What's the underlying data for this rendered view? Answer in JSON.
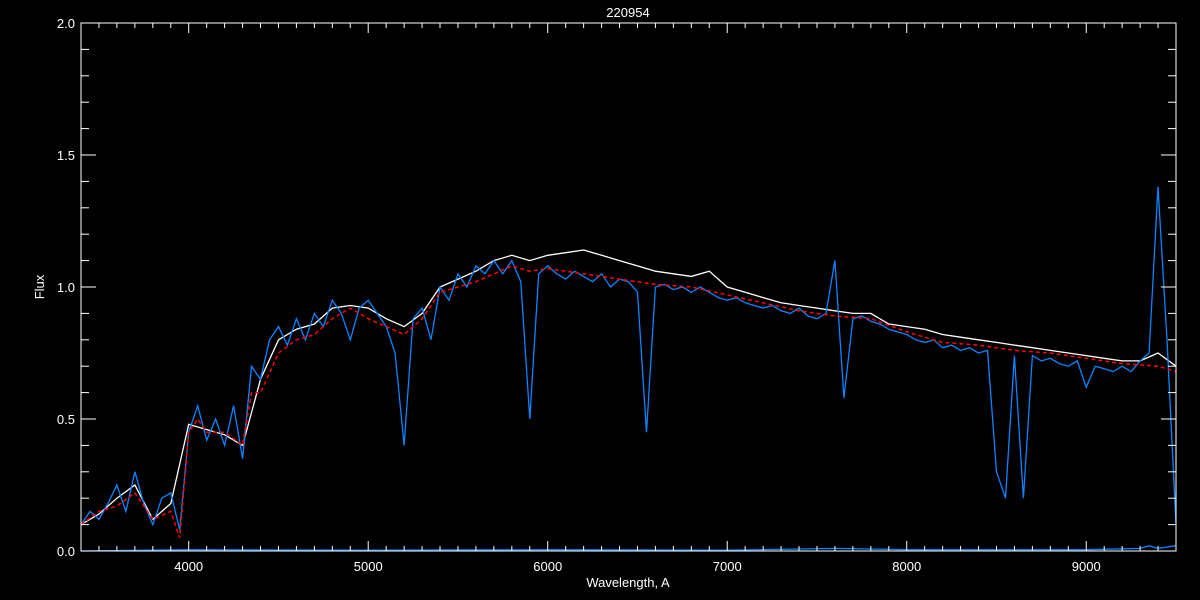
{
  "chart_data": {
    "type": "line",
    "title": "220954",
    "xlabel": "Wavelength, A",
    "ylabel": "Flux",
    "xlim": [
      3400,
      9500
    ],
    "ylim": [
      0.0,
      2.0
    ],
    "xticks": [
      4000,
      5000,
      6000,
      7000,
      8000,
      9000
    ],
    "xtick_labels": [
      "4000",
      "5000",
      "6000",
      "7000",
      "8000",
      "9000"
    ],
    "yticks": [
      0.0,
      0.5,
      1.0,
      1.5,
      2.0
    ],
    "ytick_labels": [
      "0.0",
      "0.5",
      "1.0",
      "1.5",
      "2.0"
    ],
    "grid": false,
    "background": "#000000",
    "series": [
      {
        "color": "#ffffff",
        "style": "solid",
        "points": [
          [
            3400,
            0.1
          ],
          [
            3500,
            0.14
          ],
          [
            3600,
            0.2
          ],
          [
            3700,
            0.25
          ],
          [
            3800,
            0.12
          ],
          [
            3900,
            0.18
          ],
          [
            4000,
            0.48
          ],
          [
            4100,
            0.46
          ],
          [
            4200,
            0.44
          ],
          [
            4300,
            0.4
          ],
          [
            4400,
            0.65
          ],
          [
            4500,
            0.8
          ],
          [
            4600,
            0.84
          ],
          [
            4700,
            0.86
          ],
          [
            4800,
            0.92
          ],
          [
            4900,
            0.93
          ],
          [
            5000,
            0.92
          ],
          [
            5100,
            0.88
          ],
          [
            5200,
            0.85
          ],
          [
            5300,
            0.9
          ],
          [
            5400,
            1.0
          ],
          [
            5500,
            1.03
          ],
          [
            5600,
            1.06
          ],
          [
            5700,
            1.1
          ],
          [
            5800,
            1.12
          ],
          [
            5900,
            1.1
          ],
          [
            6000,
            1.12
          ],
          [
            6100,
            1.13
          ],
          [
            6200,
            1.14
          ],
          [
            6300,
            1.12
          ],
          [
            6400,
            1.1
          ],
          [
            6500,
            1.08
          ],
          [
            6600,
            1.06
          ],
          [
            6700,
            1.05
          ],
          [
            6800,
            1.04
          ],
          [
            6900,
            1.06
          ],
          [
            7000,
            1.0
          ],
          [
            7100,
            0.98
          ],
          [
            7200,
            0.96
          ],
          [
            7300,
            0.94
          ],
          [
            7400,
            0.93
          ],
          [
            7500,
            0.92
          ],
          [
            7600,
            0.91
          ],
          [
            7700,
            0.9
          ],
          [
            7800,
            0.9
          ],
          [
            7900,
            0.86
          ],
          [
            8000,
            0.85
          ],
          [
            8100,
            0.84
          ],
          [
            8200,
            0.82
          ],
          [
            8300,
            0.81
          ],
          [
            8400,
            0.8
          ],
          [
            8500,
            0.79
          ],
          [
            8600,
            0.78
          ],
          [
            8700,
            0.77
          ],
          [
            8800,
            0.76
          ],
          [
            8900,
            0.75
          ],
          [
            9000,
            0.74
          ],
          [
            9100,
            0.73
          ],
          [
            9200,
            0.72
          ],
          [
            9300,
            0.72
          ],
          [
            9400,
            0.75
          ],
          [
            9500,
            0.7
          ]
        ]
      },
      {
        "color": "#0a84ff",
        "style": "solid",
        "points": [
          [
            3400,
            0.1
          ],
          [
            3450,
            0.15
          ],
          [
            3500,
            0.12
          ],
          [
            3550,
            0.18
          ],
          [
            3600,
            0.25
          ],
          [
            3650,
            0.15
          ],
          [
            3700,
            0.3
          ],
          [
            3750,
            0.18
          ],
          [
            3800,
            0.1
          ],
          [
            3850,
            0.2
          ],
          [
            3900,
            0.22
          ],
          [
            3950,
            0.08
          ],
          [
            4000,
            0.45
          ],
          [
            4050,
            0.55
          ],
          [
            4100,
            0.42
          ],
          [
            4150,
            0.5
          ],
          [
            4200,
            0.4
          ],
          [
            4250,
            0.55
          ],
          [
            4300,
            0.35
          ],
          [
            4350,
            0.7
          ],
          [
            4400,
            0.65
          ],
          [
            4450,
            0.8
          ],
          [
            4500,
            0.85
          ],
          [
            4550,
            0.78
          ],
          [
            4600,
            0.88
          ],
          [
            4650,
            0.8
          ],
          [
            4700,
            0.9
          ],
          [
            4750,
            0.85
          ],
          [
            4800,
            0.95
          ],
          [
            4850,
            0.9
          ],
          [
            4900,
            0.8
          ],
          [
            4950,
            0.92
          ],
          [
            5000,
            0.95
          ],
          [
            5050,
            0.9
          ],
          [
            5100,
            0.85
          ],
          [
            5150,
            0.75
          ],
          [
            5200,
            0.4
          ],
          [
            5250,
            0.88
          ],
          [
            5300,
            0.92
          ],
          [
            5350,
            0.8
          ],
          [
            5400,
            1.0
          ],
          [
            5450,
            0.95
          ],
          [
            5500,
            1.05
          ],
          [
            5550,
            1.0
          ],
          [
            5600,
            1.08
          ],
          [
            5650,
            1.05
          ],
          [
            5700,
            1.1
          ],
          [
            5750,
            1.05
          ],
          [
            5800,
            1.1
          ],
          [
            5850,
            1.02
          ],
          [
            5900,
            0.5
          ],
          [
            5950,
            1.05
          ],
          [
            6000,
            1.08
          ],
          [
            6050,
            1.05
          ],
          [
            6100,
            1.03
          ],
          [
            6150,
            1.06
          ],
          [
            6200,
            1.04
          ],
          [
            6250,
            1.02
          ],
          [
            6300,
            1.05
          ],
          [
            6350,
            1.0
          ],
          [
            6400,
            1.03
          ],
          [
            6450,
            1.02
          ],
          [
            6500,
            0.98
          ],
          [
            6550,
            0.45
          ],
          [
            6600,
            1.0
          ],
          [
            6650,
            1.01
          ],
          [
            6700,
            0.99
          ],
          [
            6750,
            1.0
          ],
          [
            6800,
            0.98
          ],
          [
            6850,
            1.0
          ],
          [
            6900,
            0.98
          ],
          [
            6950,
            0.96
          ],
          [
            7000,
            0.95
          ],
          [
            7050,
            0.96
          ],
          [
            7100,
            0.94
          ],
          [
            7150,
            0.93
          ],
          [
            7200,
            0.92
          ],
          [
            7250,
            0.93
          ],
          [
            7300,
            0.91
          ],
          [
            7350,
            0.9
          ],
          [
            7400,
            0.92
          ],
          [
            7450,
            0.89
          ],
          [
            7500,
            0.88
          ],
          [
            7550,
            0.9
          ],
          [
            7600,
            1.1
          ],
          [
            7650,
            0.58
          ],
          [
            7700,
            0.88
          ],
          [
            7750,
            0.89
          ],
          [
            7800,
            0.87
          ],
          [
            7850,
            0.86
          ],
          [
            7900,
            0.84
          ],
          [
            7950,
            0.83
          ],
          [
            8000,
            0.82
          ],
          [
            8050,
            0.8
          ],
          [
            8100,
            0.79
          ],
          [
            8150,
            0.8
          ],
          [
            8200,
            0.77
          ],
          [
            8250,
            0.78
          ],
          [
            8300,
            0.76
          ],
          [
            8350,
            0.77
          ],
          [
            8400,
            0.75
          ],
          [
            8450,
            0.76
          ],
          [
            8500,
            0.3
          ],
          [
            8550,
            0.2
          ],
          [
            8600,
            0.74
          ],
          [
            8650,
            0.2
          ],
          [
            8700,
            0.74
          ],
          [
            8750,
            0.72
          ],
          [
            8800,
            0.73
          ],
          [
            8850,
            0.71
          ],
          [
            8900,
            0.7
          ],
          [
            8950,
            0.72
          ],
          [
            9000,
            0.62
          ],
          [
            9050,
            0.7
          ],
          [
            9100,
            0.69
          ],
          [
            9150,
            0.68
          ],
          [
            9200,
            0.7
          ],
          [
            9250,
            0.68
          ],
          [
            9300,
            0.72
          ],
          [
            9350,
            0.75
          ],
          [
            9400,
            1.38
          ],
          [
            9450,
            0.8
          ],
          [
            9500,
            0.1
          ]
        ]
      },
      {
        "color": "#ff0000",
        "style": "dashed",
        "points": [
          [
            3400,
            0.1
          ],
          [
            3500,
            0.15
          ],
          [
            3600,
            0.17
          ],
          [
            3700,
            0.22
          ],
          [
            3800,
            0.12
          ],
          [
            3900,
            0.15
          ],
          [
            3950,
            0.05
          ],
          [
            4000,
            0.45
          ],
          [
            4050,
            0.5
          ],
          [
            4100,
            0.45
          ],
          [
            4200,
            0.45
          ],
          [
            4300,
            0.4
          ],
          [
            4350,
            0.6
          ],
          [
            4400,
            0.6
          ],
          [
            4500,
            0.75
          ],
          [
            4600,
            0.8
          ],
          [
            4700,
            0.82
          ],
          [
            4800,
            0.88
          ],
          [
            4900,
            0.92
          ],
          [
            5000,
            0.88
          ],
          [
            5100,
            0.85
          ],
          [
            5200,
            0.82
          ],
          [
            5300,
            0.88
          ],
          [
            5400,
            0.98
          ],
          [
            5500,
            1.0
          ],
          [
            5600,
            1.02
          ],
          [
            5700,
            1.05
          ],
          [
            5800,
            1.08
          ],
          [
            5900,
            1.06
          ],
          [
            6000,
            1.07
          ],
          [
            6200,
            1.05
          ],
          [
            6400,
            1.03
          ],
          [
            6600,
            1.01
          ],
          [
            6800,
            1.0
          ],
          [
            7000,
            0.97
          ],
          [
            7200,
            0.94
          ],
          [
            7400,
            0.91
          ],
          [
            7600,
            0.89
          ],
          [
            7800,
            0.88
          ],
          [
            8000,
            0.83
          ],
          [
            8200,
            0.79
          ],
          [
            8400,
            0.78
          ],
          [
            8600,
            0.76
          ],
          [
            8800,
            0.75
          ],
          [
            9000,
            0.73
          ],
          [
            9200,
            0.71
          ],
          [
            9400,
            0.7
          ],
          [
            9500,
            0.68
          ]
        ]
      },
      {
        "color": "#0a84ff",
        "style": "solid",
        "points": [
          [
            3400,
            0.0
          ],
          [
            4000,
            0.005
          ],
          [
            5000,
            0.003
          ],
          [
            6000,
            0.005
          ],
          [
            7000,
            0.003
          ],
          [
            7600,
            0.01
          ],
          [
            8000,
            0.005
          ],
          [
            9000,
            0.005
          ],
          [
            9300,
            0.01
          ],
          [
            9350,
            0.02
          ],
          [
            9400,
            0.01
          ],
          [
            9500,
            0.02
          ]
        ]
      }
    ]
  }
}
